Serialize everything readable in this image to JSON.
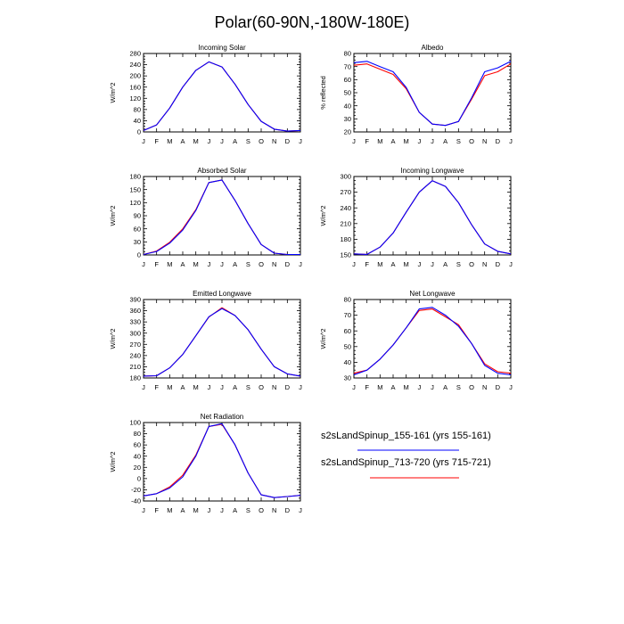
{
  "title": "Polar(60-90N,-180W-180E)",
  "colors": {
    "series_1": "#0000ff",
    "series_2": "#ff0000",
    "axis": "#000000"
  },
  "legend": [
    {
      "label": "s2sLandSpinup_155-161 (yrs 155-161)",
      "color": "#0000ff"
    },
    {
      "label": "s2sLandSpinup_713-720 (yrs 715-721)",
      "color": "#ff0000"
    }
  ],
  "chart_data": [
    {
      "type": "line",
      "title": "Incoming Solar",
      "ylabel": "W/m^2",
      "ylim": [
        0,
        280
      ],
      "yticks": [
        0,
        40,
        80,
        120,
        160,
        200,
        240,
        280
      ],
      "categories": [
        "J",
        "F",
        "M",
        "A",
        "M",
        "J",
        "J",
        "A",
        "S",
        "O",
        "N",
        "D",
        "J"
      ],
      "series": [
        {
          "name": "s2sLandSpinup_155-161 (yrs 155-161)",
          "values": [
            5,
            25,
            85,
            160,
            220,
            250,
            232,
            170,
            98,
            38,
            10,
            3,
            5
          ]
        },
        {
          "name": "s2sLandSpinup_713-720 (yrs 715-721)",
          "values": [
            5,
            25,
            85,
            160,
            220,
            250,
            232,
            170,
            98,
            38,
            10,
            3,
            5
          ]
        }
      ]
    },
    {
      "type": "line",
      "title": "Albedo",
      "ylabel": "% reflected",
      "ylim": [
        20,
        80
      ],
      "yticks": [
        20,
        30,
        40,
        50,
        60,
        70,
        80
      ],
      "categories": [
        "J",
        "F",
        "M",
        "A",
        "M",
        "J",
        "J",
        "A",
        "S",
        "O",
        "N",
        "D",
        "J"
      ],
      "series": [
        {
          "name": "s2sLandSpinup_155-161 (yrs 155-161)",
          "values": [
            73,
            74,
            70,
            66,
            54,
            35,
            26,
            25,
            28,
            46,
            66,
            69,
            74
          ]
        },
        {
          "name": "s2sLandSpinup_713-720 (yrs 715-721)",
          "values": [
            71,
            72,
            68,
            64,
            53,
            35,
            26,
            25,
            28,
            45,
            63,
            66,
            72
          ]
        }
      ]
    },
    {
      "type": "line",
      "title": "Absorbed Solar",
      "ylabel": "W/m^2",
      "ylim": [
        0,
        180
      ],
      "yticks": [
        0,
        30,
        60,
        90,
        120,
        150,
        180
      ],
      "categories": [
        "J",
        "F",
        "M",
        "A",
        "M",
        "J",
        "J",
        "A",
        "S",
        "O",
        "N",
        "D",
        "J"
      ],
      "series": [
        {
          "name": "s2sLandSpinup_155-161 (yrs 155-161)",
          "values": [
            1,
            8,
            27,
            57,
            102,
            166,
            172,
            125,
            72,
            24,
            4,
            1,
            1
          ]
        },
        {
          "name": "s2sLandSpinup_713-720 (yrs 715-721)",
          "values": [
            1,
            9,
            29,
            60,
            104,
            166,
            172,
            125,
            72,
            24,
            4,
            1,
            1
          ]
        }
      ]
    },
    {
      "type": "line",
      "title": "Incoming Longwave",
      "ylabel": "W/m^2",
      "ylim": [
        150,
        300
      ],
      "yticks": [
        150,
        180,
        210,
        240,
        270,
        300
      ],
      "categories": [
        "J",
        "F",
        "M",
        "A",
        "M",
        "J",
        "J",
        "A",
        "S",
        "O",
        "N",
        "D",
        "J"
      ],
      "series": [
        {
          "name": "s2sLandSpinup_155-161 (yrs 155-161)",
          "values": [
            152,
            151,
            165,
            192,
            232,
            270,
            292,
            281,
            250,
            208,
            171,
            157,
            152
          ]
        },
        {
          "name": "s2sLandSpinup_713-720 (yrs 715-721)",
          "values": [
            152,
            151,
            165,
            192,
            232,
            270,
            292,
            281,
            250,
            208,
            171,
            157,
            152
          ]
        }
      ]
    },
    {
      "type": "line",
      "title": "Emitted Longwave",
      "ylabel": "W/m^2",
      "ylim": [
        180,
        390
      ],
      "yticks": [
        180,
        210,
        240,
        270,
        300,
        330,
        360,
        390
      ],
      "categories": [
        "J",
        "F",
        "M",
        "A",
        "M",
        "J",
        "J",
        "A",
        "S",
        "O",
        "N",
        "D",
        "J"
      ],
      "series": [
        {
          "name": "s2sLandSpinup_155-161 (yrs 155-161)",
          "values": [
            185,
            186,
            207,
            243,
            293,
            344,
            366,
            347,
            309,
            257,
            210,
            191,
            185
          ]
        },
        {
          "name": "s2sLandSpinup_713-720 (yrs 715-721)",
          "values": [
            185,
            186,
            207,
            243,
            293,
            343,
            368,
            347,
            309,
            257,
            210,
            191,
            185
          ]
        }
      ]
    },
    {
      "type": "line",
      "title": "Net Longwave",
      "ylabel": "W/m^2",
      "ylim": [
        30,
        80
      ],
      "yticks": [
        30,
        40,
        50,
        60,
        70,
        80
      ],
      "categories": [
        "J",
        "F",
        "M",
        "A",
        "M",
        "J",
        "J",
        "A",
        "S",
        "O",
        "N",
        "D",
        "J"
      ],
      "series": [
        {
          "name": "s2sLandSpinup_155-161 (yrs 155-161)",
          "values": [
            32,
            35,
            42,
            51,
            62,
            74,
            75,
            70,
            63,
            52,
            38,
            33,
            32
          ]
        },
        {
          "name": "s2sLandSpinup_713-720 (yrs 715-721)",
          "values": [
            33,
            35,
            42,
            51,
            62,
            73,
            74,
            69,
            64,
            52,
            39,
            34,
            33
          ]
        }
      ]
    },
    {
      "type": "line",
      "title": "Net Radiation",
      "ylabel": "W/m^2",
      "ylim": [
        -40,
        100
      ],
      "yticks": [
        -40,
        -20,
        0,
        20,
        40,
        60,
        80,
        100
      ],
      "categories": [
        "J",
        "F",
        "M",
        "A",
        "M",
        "J",
        "J",
        "A",
        "S",
        "O",
        "N",
        "D",
        "J"
      ],
      "series": [
        {
          "name": "s2sLandSpinup_155-161 (yrs 155-161)",
          "values": [
            -31,
            -27,
            -17,
            3,
            40,
            93,
            98,
            60,
            10,
            -29,
            -34,
            -32,
            -30
          ]
        },
        {
          "name": "s2sLandSpinup_713-720 (yrs 715-721)",
          "values": [
            -31,
            -27,
            -15,
            6,
            42,
            93,
            97,
            60,
            10,
            -29,
            -34,
            -32,
            -30
          ]
        }
      ]
    }
  ]
}
